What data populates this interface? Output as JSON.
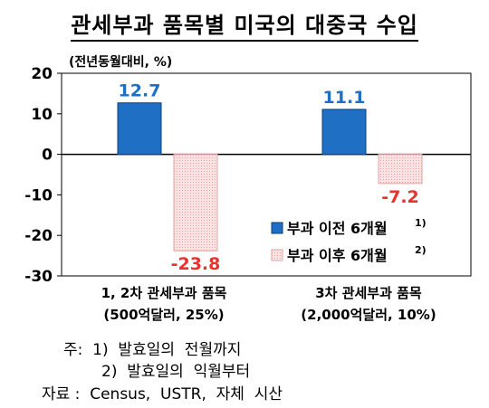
{
  "title": "관세부과 품목별 미국의 대중국 수입",
  "chart_data": {
    "type": "bar",
    "unit_label": "(전년동월대비, %)",
    "ylim": [
      -30,
      20
    ],
    "yticks": [
      "20",
      "10",
      "0",
      "-10",
      "-20",
      "-30"
    ],
    "categories": [
      [
        "1, 2차 관세부과 품목",
        "(500억달러, 25%)"
      ],
      [
        "3차 관세부과 품목",
        "(2,000억달러, 10%)"
      ]
    ],
    "series": [
      {
        "name": "부과 이전 6개월",
        "sup": "1)",
        "values": [
          12.7,
          11.1
        ],
        "labels": [
          "12.7",
          "11.1"
        ],
        "color": "#1f6fc5",
        "label_color": "#1f6fc5"
      },
      {
        "name": "부과 이후 6개월",
        "sup": "2)",
        "values": [
          -23.8,
          -7.2
        ],
        "labels": [
          "-23.8",
          "-7.2"
        ],
        "color": "#f6d4d4",
        "label_color": "#e8322d"
      }
    ],
    "legend": "right-middle"
  },
  "notes": {
    "line1": "주:  1)  발효일의  전월까지",
    "line2": "2)  발효일의  익월부터",
    "source": "자료 :  Census,  USTR,  자체  시산"
  }
}
